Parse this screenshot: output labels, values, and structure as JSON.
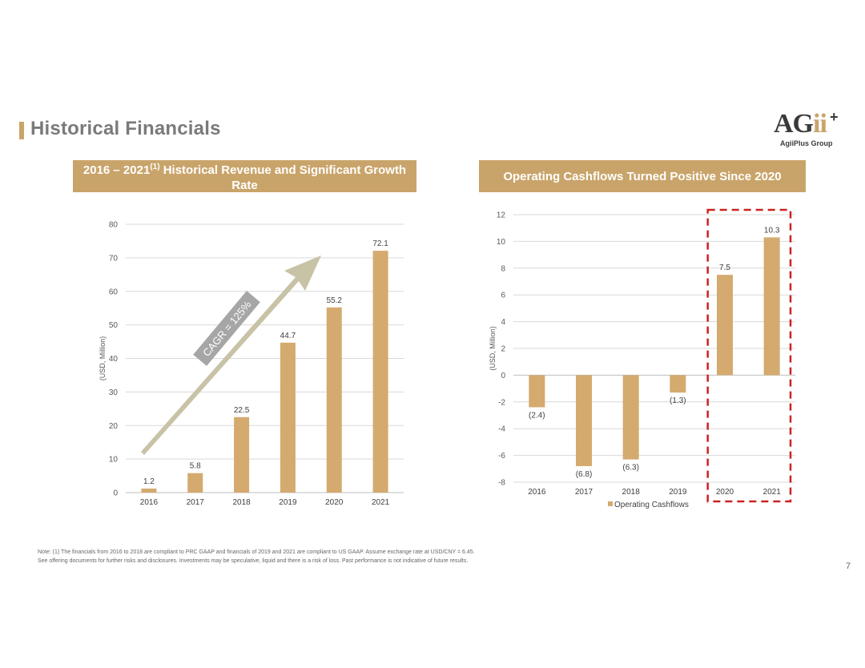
{
  "page": {
    "title": "Historical Financials",
    "page_number": "7",
    "note_lines": [
      "Note: (1) The financials from 2016 to 2018 are compliant to PRC GAAP and financials of 2019 and 2021 are compliant to US GAAP. Assume exchange rate at USD/CNY = 6.45.",
      "See offering documents for further risks and disclosures. Investments may be speculative, liquid and there is a risk of loss. Past performance is not indicative of future results."
    ]
  },
  "logo": {
    "main_a": "AG",
    "main_ii": "ii",
    "plus": "+",
    "sub": "AgiiPlus Group"
  },
  "colors": {
    "accent": "#C9A46A",
    "bar": "#D4AA6F",
    "grid": "#d9d9d9",
    "arrow": "#C8C2A6",
    "cagr_box": "#A6A6A6",
    "highlight": "#CC2222"
  },
  "chart_data": [
    {
      "type": "bar",
      "title_pre": "2016 – 2021",
      "title_sup": "(1)",
      "title_post": " Historical Revenue and Significant Growth Rate",
      "ylabel": "(USD, Million)",
      "categories": [
        "2016",
        "2017",
        "2018",
        "2019",
        "2020",
        "2021"
      ],
      "values": [
        1.2,
        5.8,
        22.5,
        44.7,
        55.2,
        72.1
      ],
      "value_labels": [
        "1.2",
        "5.8",
        "22.5",
        "44.7",
        "55.2",
        "72.1"
      ],
      "ylim": [
        0,
        80
      ],
      "yticks": [
        0,
        10,
        20,
        30,
        40,
        50,
        60,
        70,
        80
      ],
      "grid": true,
      "annotation": "CAGR = 125%"
    },
    {
      "type": "bar",
      "title": "Operating Cashflows Turned Positive Since 2020",
      "ylabel": "(USD, Million)",
      "categories": [
        "2016",
        "2017",
        "2018",
        "2019",
        "2020",
        "2021"
      ],
      "values": [
        -2.4,
        -6.8,
        -6.3,
        -1.3,
        7.5,
        10.3
      ],
      "value_labels": [
        "(2.4)",
        "(6.8)",
        "(6.3)",
        "(1.3)",
        "7.5",
        "10.3"
      ],
      "ylim": [
        -8,
        12
      ],
      "yticks": [
        -8,
        -6,
        -4,
        -2,
        0,
        2,
        4,
        6,
        8,
        10,
        12
      ],
      "grid": true,
      "legend": "Operating Cashflows",
      "legend_position": "bottom",
      "highlight_categories": [
        "2020",
        "2021"
      ]
    }
  ]
}
